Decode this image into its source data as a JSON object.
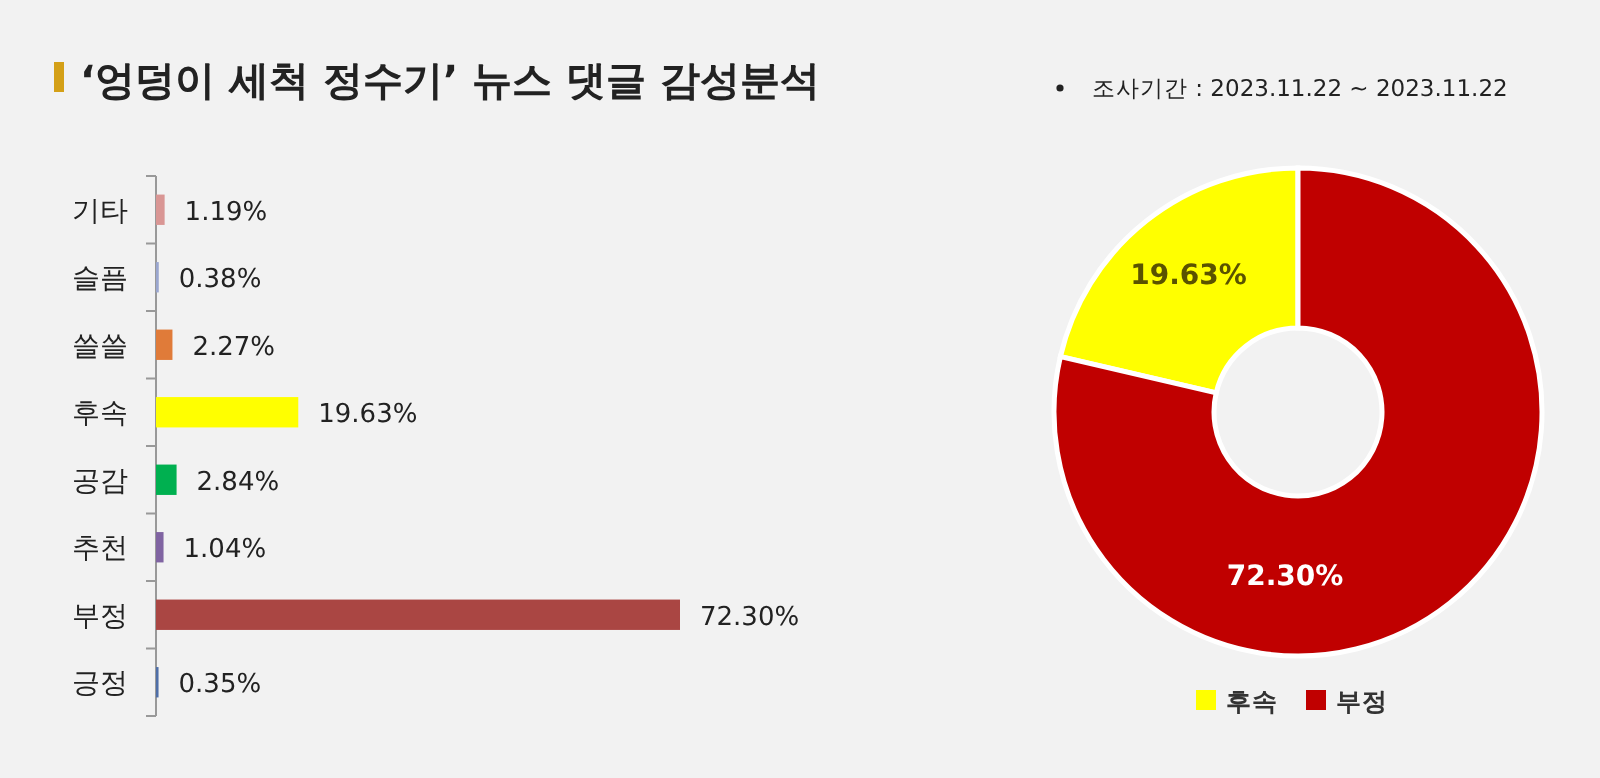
{
  "chart_data": [
    {
      "type": "bar",
      "orientation": "horizontal",
      "title": "‘엉덩이 세척 정수기’ 뉴스 댓글 감성분석",
      "categories": [
        "기타",
        "슬픔",
        "쓸쓸",
        "후속",
        "공감",
        "추천",
        "부정",
        "긍정"
      ],
      "values": [
        1.19,
        0.38,
        2.27,
        19.63,
        2.84,
        1.04,
        72.3,
        0.35
      ],
      "colors": [
        "#d99694",
        "#9aa6cf",
        "#e07b39",
        "#ffff00",
        "#00b050",
        "#8064a2",
        "#aa4643",
        "#4f6fa8"
      ],
      "value_labels": [
        "1.19%",
        "0.38%",
        "2.27%",
        "19.63%",
        "2.84%",
        "1.04%",
        "72.30%",
        "0.35%"
      ]
    },
    {
      "type": "donut",
      "annotations": [
        "조사기간 : 2023.11.22 ~ 2023.11.22"
      ],
      "categories": [
        "후속",
        "부정"
      ],
      "values": [
        19.63,
        72.3
      ],
      "colors": [
        "#ffff00",
        "#c00000"
      ],
      "value_labels": [
        "19.63%",
        "72.30%"
      ],
      "legend": "bottom"
    }
  ]
}
